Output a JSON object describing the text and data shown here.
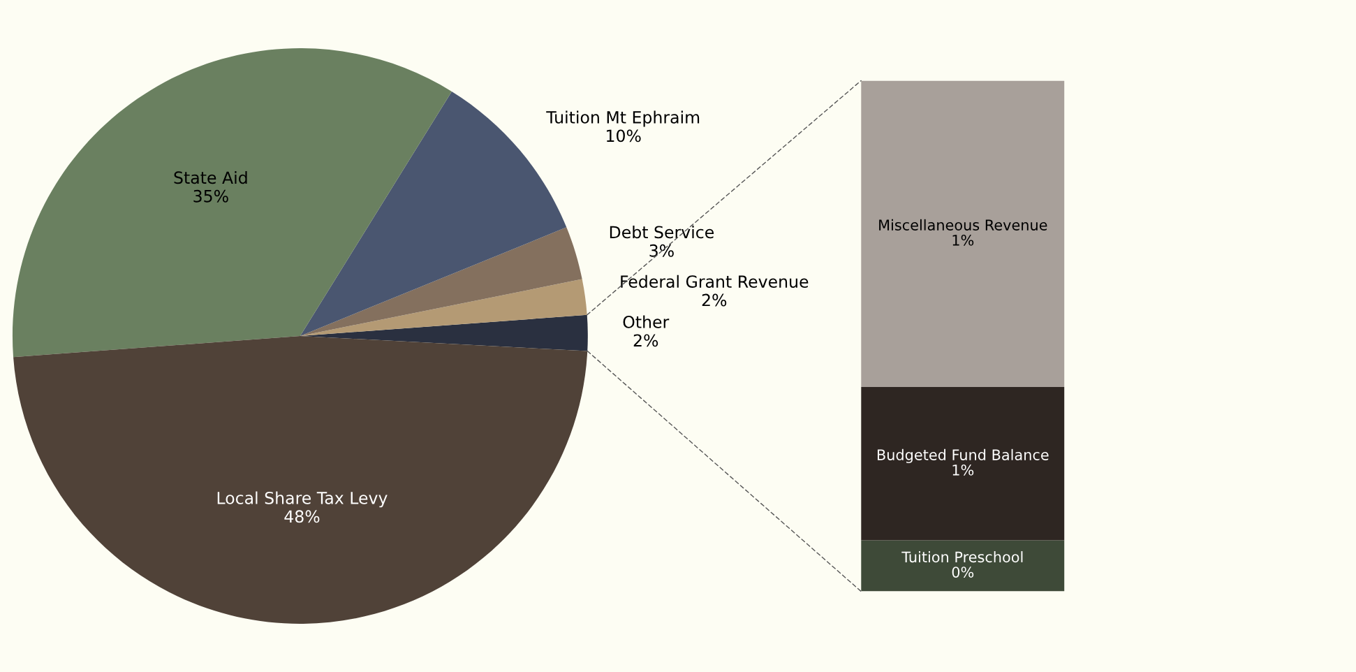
{
  "chart_data": [
    {
      "type": "pie",
      "categories": [
        "Other",
        "Federal Grant Revenue",
        "Debt Service",
        "Tuition Mt Ephraim",
        "State Aid",
        "Local Share Tax Levy"
      ],
      "values": [
        2,
        2,
        3,
        10,
        35,
        48
      ],
      "colors": [
        "#2a3040",
        "#b49a74",
        "#84705e",
        "#4a5670",
        "#6a8060",
        "#504238"
      ],
      "value_labels": [
        "2%",
        "2%",
        "3%",
        "10%",
        "35%",
        "48%"
      ]
    },
    {
      "type": "bar",
      "stacked": true,
      "tick_labels": false,
      "categories": [
        null
      ],
      "series": [
        {
          "name": "Tuition Preschool",
          "color": "#3e4a38",
          "values": [
            0.2
          ],
          "value_labels": [
            "0%"
          ]
        },
        {
          "name": "Budgeted Fund Balance",
          "color": "#2e2622",
          "values": [
            0.6
          ],
          "value_labels": [
            "1%"
          ]
        },
        {
          "name": "Miscellaneous Revenue",
          "color": "#a8a09a",
          "values": [
            1.2
          ],
          "value_labels": [
            "1%"
          ]
        }
      ]
    }
  ]
}
